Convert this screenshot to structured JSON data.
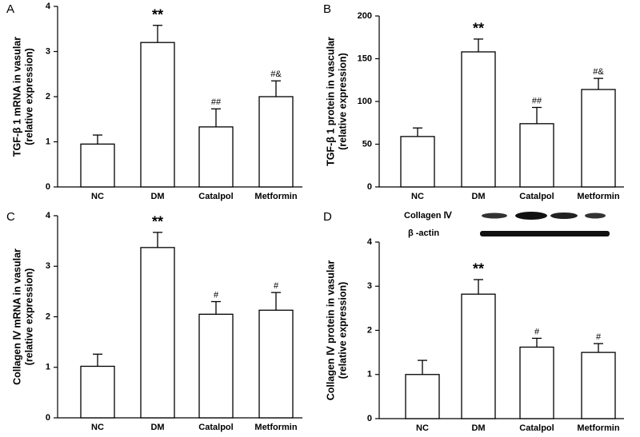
{
  "chart_data": [
    {
      "type": "bar",
      "panel_label": "A",
      "ylabel": [
        "TGF-β 1 mRNA in vasular",
        "(relative expression)"
      ],
      "categories": [
        "NC",
        "DM",
        "Catalpol",
        "Metformin"
      ],
      "values": [
        0.95,
        3.2,
        1.33,
        2.0
      ],
      "errors": [
        0.2,
        0.38,
        0.4,
        0.35
      ],
      "annotations": [
        null,
        "**",
        "##",
        "#&"
      ],
      "color": "#ffffff",
      "ylim": [
        0,
        4
      ],
      "yticks": [
        0,
        1,
        2,
        3,
        4
      ]
    },
    {
      "type": "bar",
      "panel_label": "B",
      "ylabel": [
        "TGF-β 1 protein in vascular",
        "(relative expression)"
      ],
      "categories": [
        "NC",
        "DM",
        "Catalpol",
        "Metformin"
      ],
      "values": [
        59,
        158,
        74,
        114
      ],
      "errors": [
        10,
        15,
        19,
        13
      ],
      "annotations": [
        null,
        "**",
        "##",
        "#&"
      ],
      "color": "#ffffff",
      "ylim": [
        0,
        200
      ],
      "yticks": [
        0,
        50,
        100,
        150,
        200
      ]
    },
    {
      "type": "bar",
      "panel_label": "C",
      "ylabel": [
        "Collagen Ⅳ mRNA in vasular",
        "(relative expression)"
      ],
      "categories": [
        "NC",
        "DM",
        "Catalpol",
        "Metformin"
      ],
      "values": [
        1.02,
        3.37,
        2.05,
        2.13
      ],
      "errors": [
        0.24,
        0.3,
        0.25,
        0.35
      ],
      "annotations": [
        null,
        "**",
        "#",
        "#"
      ],
      "color": "#ffffff",
      "ylim": [
        0,
        4
      ],
      "yticks": [
        0,
        1,
        2,
        3,
        4
      ]
    },
    {
      "type": "bar",
      "panel_label": "D",
      "ylabel": [
        "Collagen Ⅳ protein in vasular",
        "(relative expression)"
      ],
      "categories": [
        "NC",
        "DM",
        "Catalpol",
        "Metformin"
      ],
      "values": [
        1.0,
        2.82,
        1.62,
        1.5
      ],
      "errors": [
        0.32,
        0.33,
        0.2,
        0.2
      ],
      "annotations": [
        null,
        "**",
        "#",
        "#"
      ],
      "color": "#ffffff",
      "ylim": [
        0,
        4
      ],
      "yticks": [
        0,
        1,
        2,
        3,
        4
      ],
      "blot_labels": [
        "Collagen Ⅳ",
        "β -actin"
      ]
    }
  ]
}
